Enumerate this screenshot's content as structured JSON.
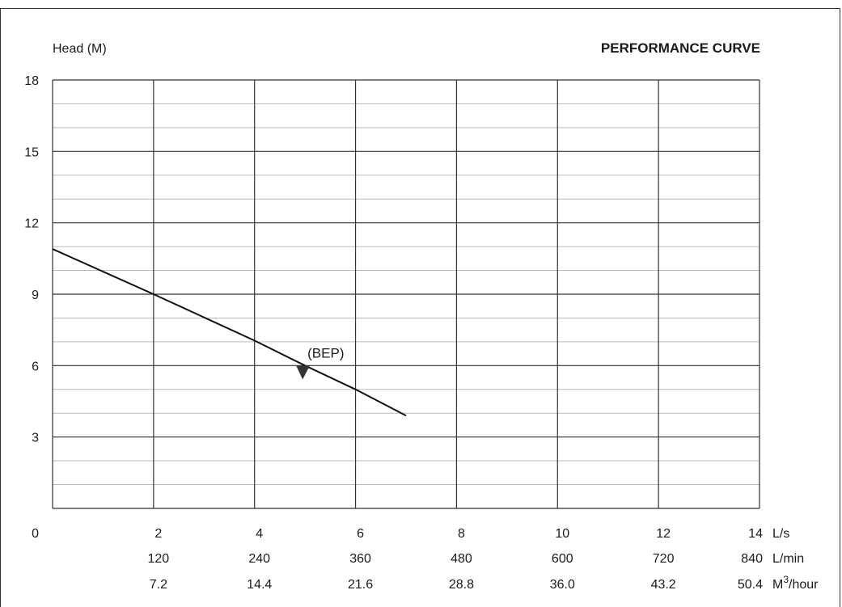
{
  "chart_data": {
    "type": "line",
    "title": "PERFORMANCE CURVE",
    "ylabel": "Head (M)",
    "ylim": [
      0,
      18
    ],
    "xlim": [
      0,
      14
    ],
    "y_ticks": [
      "0",
      "3",
      "6",
      "9",
      "12",
      "15",
      "18"
    ],
    "x_axes": [
      {
        "unit": "L/s",
        "ticks": [
          "2",
          "4",
          "6",
          "8",
          "10",
          "12",
          "14"
        ]
      },
      {
        "unit": "L/min",
        "ticks": [
          "120",
          "240",
          "360",
          "480",
          "600",
          "720",
          "840"
        ]
      },
      {
        "unit": "M³/hour",
        "unit_base": "M",
        "unit_sup": "3",
        "unit_tail": "/hour",
        "ticks": [
          "7.2",
          "14.4",
          "21.6",
          "28.8",
          "36.0",
          "43.2",
          "50.4"
        ]
      }
    ],
    "grid": true,
    "series": [
      {
        "x": [
          0,
          2,
          4,
          5,
          6,
          7
        ],
        "y": [
          10.9,
          9.0,
          7.05,
          6.0,
          5.0,
          3.9
        ]
      }
    ],
    "annotations": [
      {
        "text": "(BEP)",
        "x": 5.0,
        "y": 6.0,
        "marker": "down-triangle"
      }
    ],
    "colors": {
      "line": "#111111",
      "grid_major": "#333333",
      "grid_minor": "#bbbbbb"
    }
  }
}
